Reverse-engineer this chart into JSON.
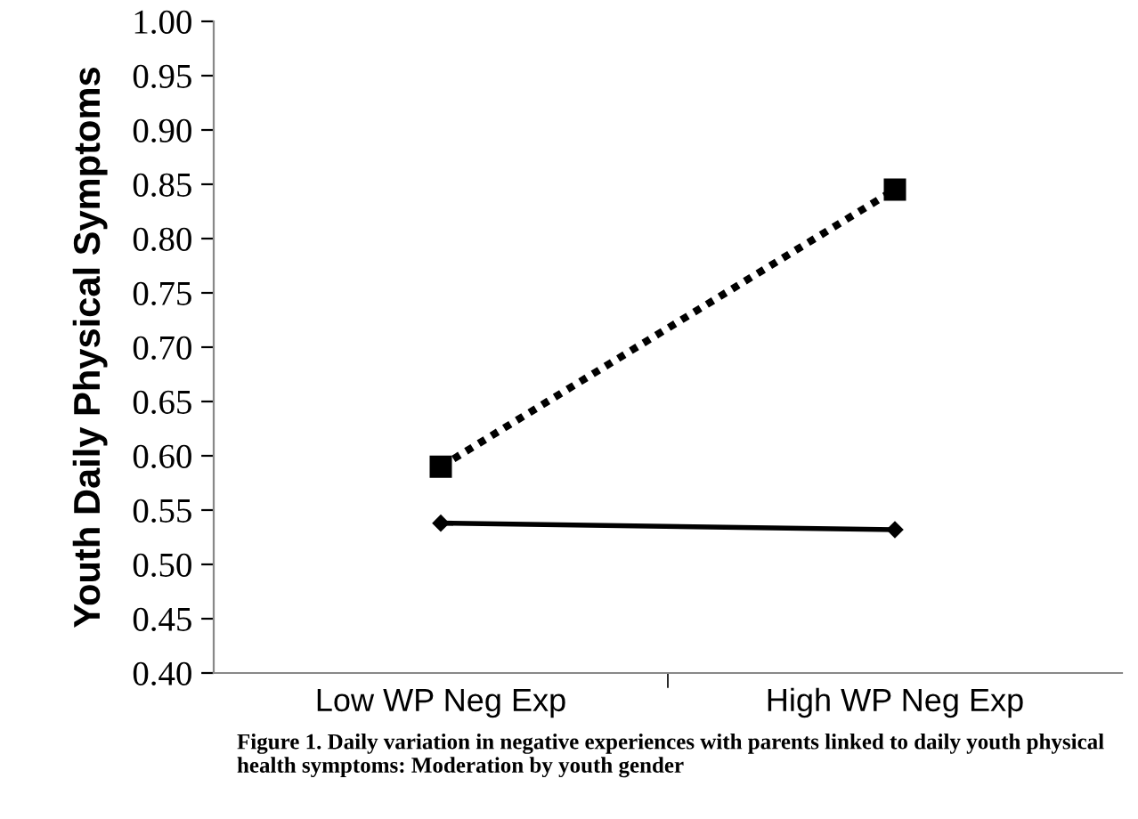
{
  "chart_data": {
    "type": "line",
    "ylabel": "Youth Daily Physical Symptoms",
    "categories": [
      "Low WP Neg Exp",
      "High WP Neg Exp"
    ],
    "series": [
      {
        "color": "#000000",
        "values": [
          0.59,
          0.845
        ],
        "marker": "square",
        "line_style": "dotted"
      },
      {
        "color": "#000000",
        "values": [
          0.538,
          0.532
        ],
        "marker": "diamond",
        "line_style": "solid"
      }
    ],
    "ylim": [
      0.4,
      1.0
    ],
    "yticks": [
      {
        "value": 0.4,
        "label": "0.40"
      },
      {
        "value": 0.45,
        "label": "0.45"
      },
      {
        "value": 0.5,
        "label": "0.50"
      },
      {
        "value": 0.55,
        "label": "0.55"
      },
      {
        "value": 0.6,
        "label": "0.60"
      },
      {
        "value": 0.65,
        "label": "0.65"
      },
      {
        "value": 0.7,
        "label": "0.70"
      },
      {
        "value": 0.75,
        "label": "0.75"
      },
      {
        "value": 0.8,
        "label": "0.80"
      },
      {
        "value": 0.85,
        "label": "0.85"
      },
      {
        "value": 0.9,
        "label": "0.90"
      },
      {
        "value": 0.95,
        "label": "0.95"
      },
      {
        "value": 1.0,
        "label": "1.00"
      }
    ],
    "grid": false,
    "legend": false,
    "annotations": [
      "Figure 1. Daily variation in negative experiences with parents linked to daily youth physical health symptoms: Moderation by youth gender"
    ]
  }
}
